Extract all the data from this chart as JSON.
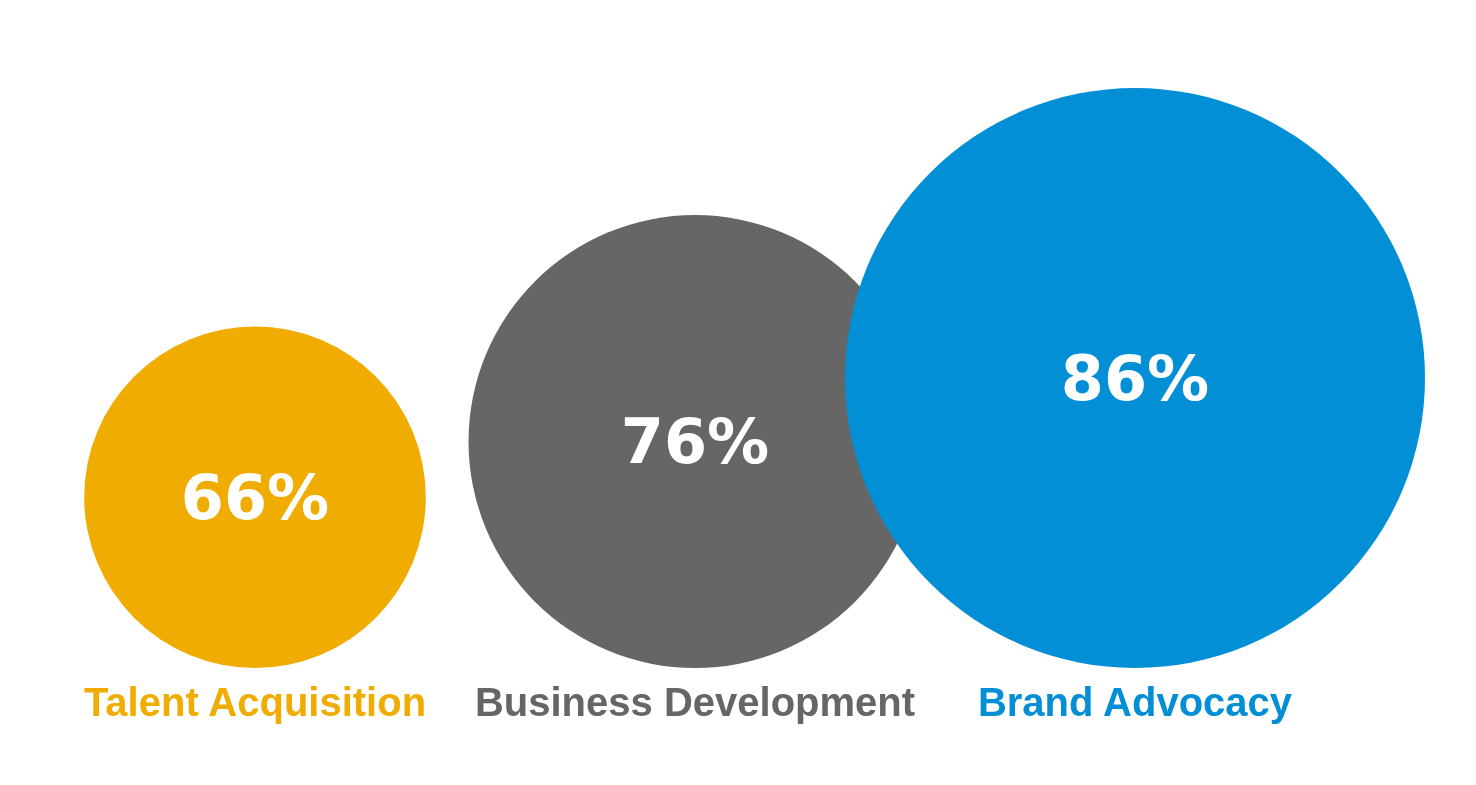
{
  "chart_data": {
    "type": "other",
    "categories": [
      "Talent Acquisition",
      "Business Development",
      "Brand Advocacy"
    ],
    "values": [
      66,
      76,
      86
    ],
    "value_labels": [
      "66%",
      "76%",
      "86%"
    ],
    "colors": [
      "#f0ac00",
      "#666666",
      "#038fd5"
    ]
  }
}
